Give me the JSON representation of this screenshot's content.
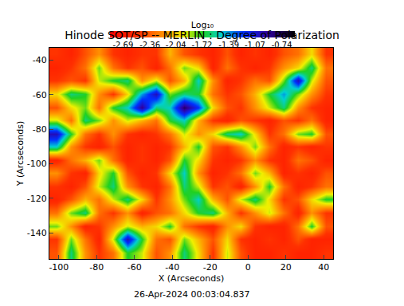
{
  "chart_data": {
    "type": "heatmap",
    "title": "Hinode SOT/SP -- MERLIN : Degree of Polarization",
    "x_label": "X (Arcseconds)",
    "y_label": "Y (Arcseconds)",
    "footer": "26-Apr-2024 00:03:04.837",
    "xlim": [
      -105,
      45
    ],
    "ylim": [
      -155,
      -33
    ],
    "xticks": [
      -100,
      -80,
      -60,
      -40,
      -20,
      0,
      20,
      40
    ],
    "yticks": [
      -140,
      -120,
      -100,
      -80,
      -60,
      -40
    ],
    "x": [
      -101.25,
      -93.75,
      -86.25,
      -78.75,
      -71.25,
      -63.75,
      -56.25,
      -48.75,
      -41.25,
      -33.75,
      -26.25,
      -18.75,
      -11.25,
      -3.75,
      3.75,
      11.25,
      18.75,
      26.25,
      33.75,
      41.25
    ],
    "y": [
      -151.19,
      -143.56,
      -135.94,
      -128.31,
      -120.69,
      -113.06,
      -105.44,
      -97.81,
      -90.19,
      -82.56,
      -74.94,
      -67.31,
      -59.69,
      -52.06,
      -44.44,
      -36.81
    ],
    "z": [
      [
        -2.4,
        -1.6,
        -2.2,
        -2.5,
        -2.3,
        -1.7,
        -1.9,
        -2.4,
        -2.2,
        -1.6,
        -2.0,
        -2.5,
        -1.9,
        -2.4,
        -2.6,
        -2.6,
        -2.5,
        -2.6,
        -2.6,
        -2.5
      ],
      [
        -2.5,
        -1.8,
        -2.3,
        -2.6,
        -1.9,
        -1.0,
        -1.7,
        -2.3,
        -2.4,
        -1.8,
        -2.1,
        -2.4,
        -2.0,
        -2.5,
        -2.6,
        -2.5,
        -2.6,
        -2.4,
        -2.6,
        -2.6
      ],
      [
        -1.8,
        -2.2,
        -2.6,
        -2.5,
        -2.2,
        -1.9,
        -2.1,
        -2.0,
        -1.7,
        -2.3,
        -2.5,
        -2.6,
        -2.2,
        -2.0,
        -2.5,
        -2.6,
        -2.6,
        -2.3,
        -1.7,
        -2.4
      ],
      [
        -2.3,
        -1.8,
        -1.6,
        -2.3,
        -2.5,
        -2.2,
        -2.6,
        -2.4,
        -2.3,
        -2.0,
        -1.7,
        -1.6,
        -2.1,
        -2.5,
        -2.2,
        -1.9,
        -2.3,
        -2.6,
        -2.2,
        -2.5
      ],
      [
        -2.6,
        -2.4,
        -2.1,
        -2.3,
        -1.9,
        -1.6,
        -2.0,
        -2.5,
        -2.2,
        -1.8,
        -1.5,
        -2.1,
        -2.4,
        -1.9,
        -1.6,
        -2.0,
        -2.5,
        -2.4,
        -2.0,
        -1.7
      ],
      [
        -2.5,
        -2.6,
        -2.4,
        -1.9,
        -1.6,
        -2.2,
        -2.5,
        -2.6,
        -2.3,
        -1.6,
        -1.9,
        -2.5,
        -2.4,
        -2.6,
        -2.2,
        -1.7,
        -2.3,
        -2.6,
        -2.5,
        -2.3
      ],
      [
        -2.2,
        -2.5,
        -2.6,
        -2.0,
        -1.7,
        -2.4,
        -2.6,
        -2.5,
        -2.0,
        -1.5,
        -2.2,
        -2.6,
        -2.5,
        -2.3,
        -1.8,
        -2.1,
        -2.6,
        -2.5,
        -2.6,
        -2.4
      ],
      [
        -2.6,
        -2.3,
        -2.1,
        -1.8,
        -2.3,
        -2.6,
        -2.5,
        -2.6,
        -2.4,
        -1.7,
        -2.0,
        -2.5,
        -2.6,
        -2.5,
        -2.2,
        -2.5,
        -2.6,
        -2.3,
        -2.4,
        -2.6
      ],
      [
        -1.5,
        -2.2,
        -2.5,
        -2.6,
        -2.4,
        -2.6,
        -2.5,
        -2.6,
        -2.5,
        -2.1,
        -1.7,
        -2.4,
        -2.5,
        -2.2,
        -1.8,
        -2.3,
        -2.6,
        -2.5,
        -2.6,
        -2.5
      ],
      [
        -1.0,
        -1.7,
        -2.3,
        -2.5,
        -2.2,
        -2.5,
        -2.6,
        -2.5,
        -2.3,
        -1.9,
        -2.2,
        -2.0,
        -1.6,
        -1.5,
        -2.0,
        -2.5,
        -2.3,
        -1.8,
        -1.7,
        -2.4
      ],
      [
        -1.9,
        -2.3,
        -1.6,
        -1.8,
        -2.2,
        -1.9,
        -2.1,
        -2.3,
        -1.7,
        -1.5,
        -2.1,
        -2.5,
        -2.6,
        -2.4,
        -2.5,
        -2.6,
        -2.4,
        -2.5,
        -2.3,
        -2.6
      ],
      [
        -2.4,
        -2.0,
        -1.8,
        -2.3,
        -1.7,
        -1.5,
        -0.9,
        -1.6,
        -1.5,
        -0.8,
        -1.2,
        -2.0,
        -2.4,
        -2.5,
        -2.2,
        -1.9,
        -1.6,
        -2.2,
        -2.5,
        -2.6
      ],
      [
        -2.0,
        -1.6,
        -1.7,
        -2.2,
        -2.5,
        -2.0,
        -1.4,
        -1.0,
        -1.8,
        -1.6,
        -1.7,
        -2.3,
        -2.5,
        -2.4,
        -2.1,
        -1.7,
        -1.4,
        -1.8,
        -2.2,
        -2.5
      ],
      [
        -2.5,
        -2.4,
        -2.5,
        -1.9,
        -1.7,
        -1.6,
        -2.2,
        -1.9,
        -2.4,
        -2.1,
        -1.5,
        -2.2,
        -2.6,
        -2.5,
        -2.3,
        -2.4,
        -1.8,
        -1.0,
        -1.9,
        -2.4
      ],
      [
        -2.6,
        -2.5,
        -2.3,
        -1.8,
        -2.3,
        -2.5,
        -2.4,
        -2.6,
        -2.3,
        -1.8,
        -2.0,
        -2.6,
        -2.3,
        -2.5,
        -2.6,
        -2.5,
        -2.2,
        -2.0,
        -1.6,
        -2.3
      ],
      [
        -2.5,
        -2.6,
        -2.4,
        -2.2,
        -2.5,
        -2.6,
        -2.5,
        -2.5,
        -2.1,
        -2.4,
        -2.5,
        -2.6,
        -2.4,
        -2.6,
        -2.5,
        -2.6,
        -2.4,
        -2.3,
        -2.0,
        -2.5
      ]
    ],
    "colorbar_title": "Log₁₀",
    "zlim": [
      -2.85,
      -0.58
    ],
    "zticks": [
      -2.69,
      -2.36,
      -2.04,
      -1.72,
      -1.39,
      -1.07,
      -0.74
    ]
  }
}
